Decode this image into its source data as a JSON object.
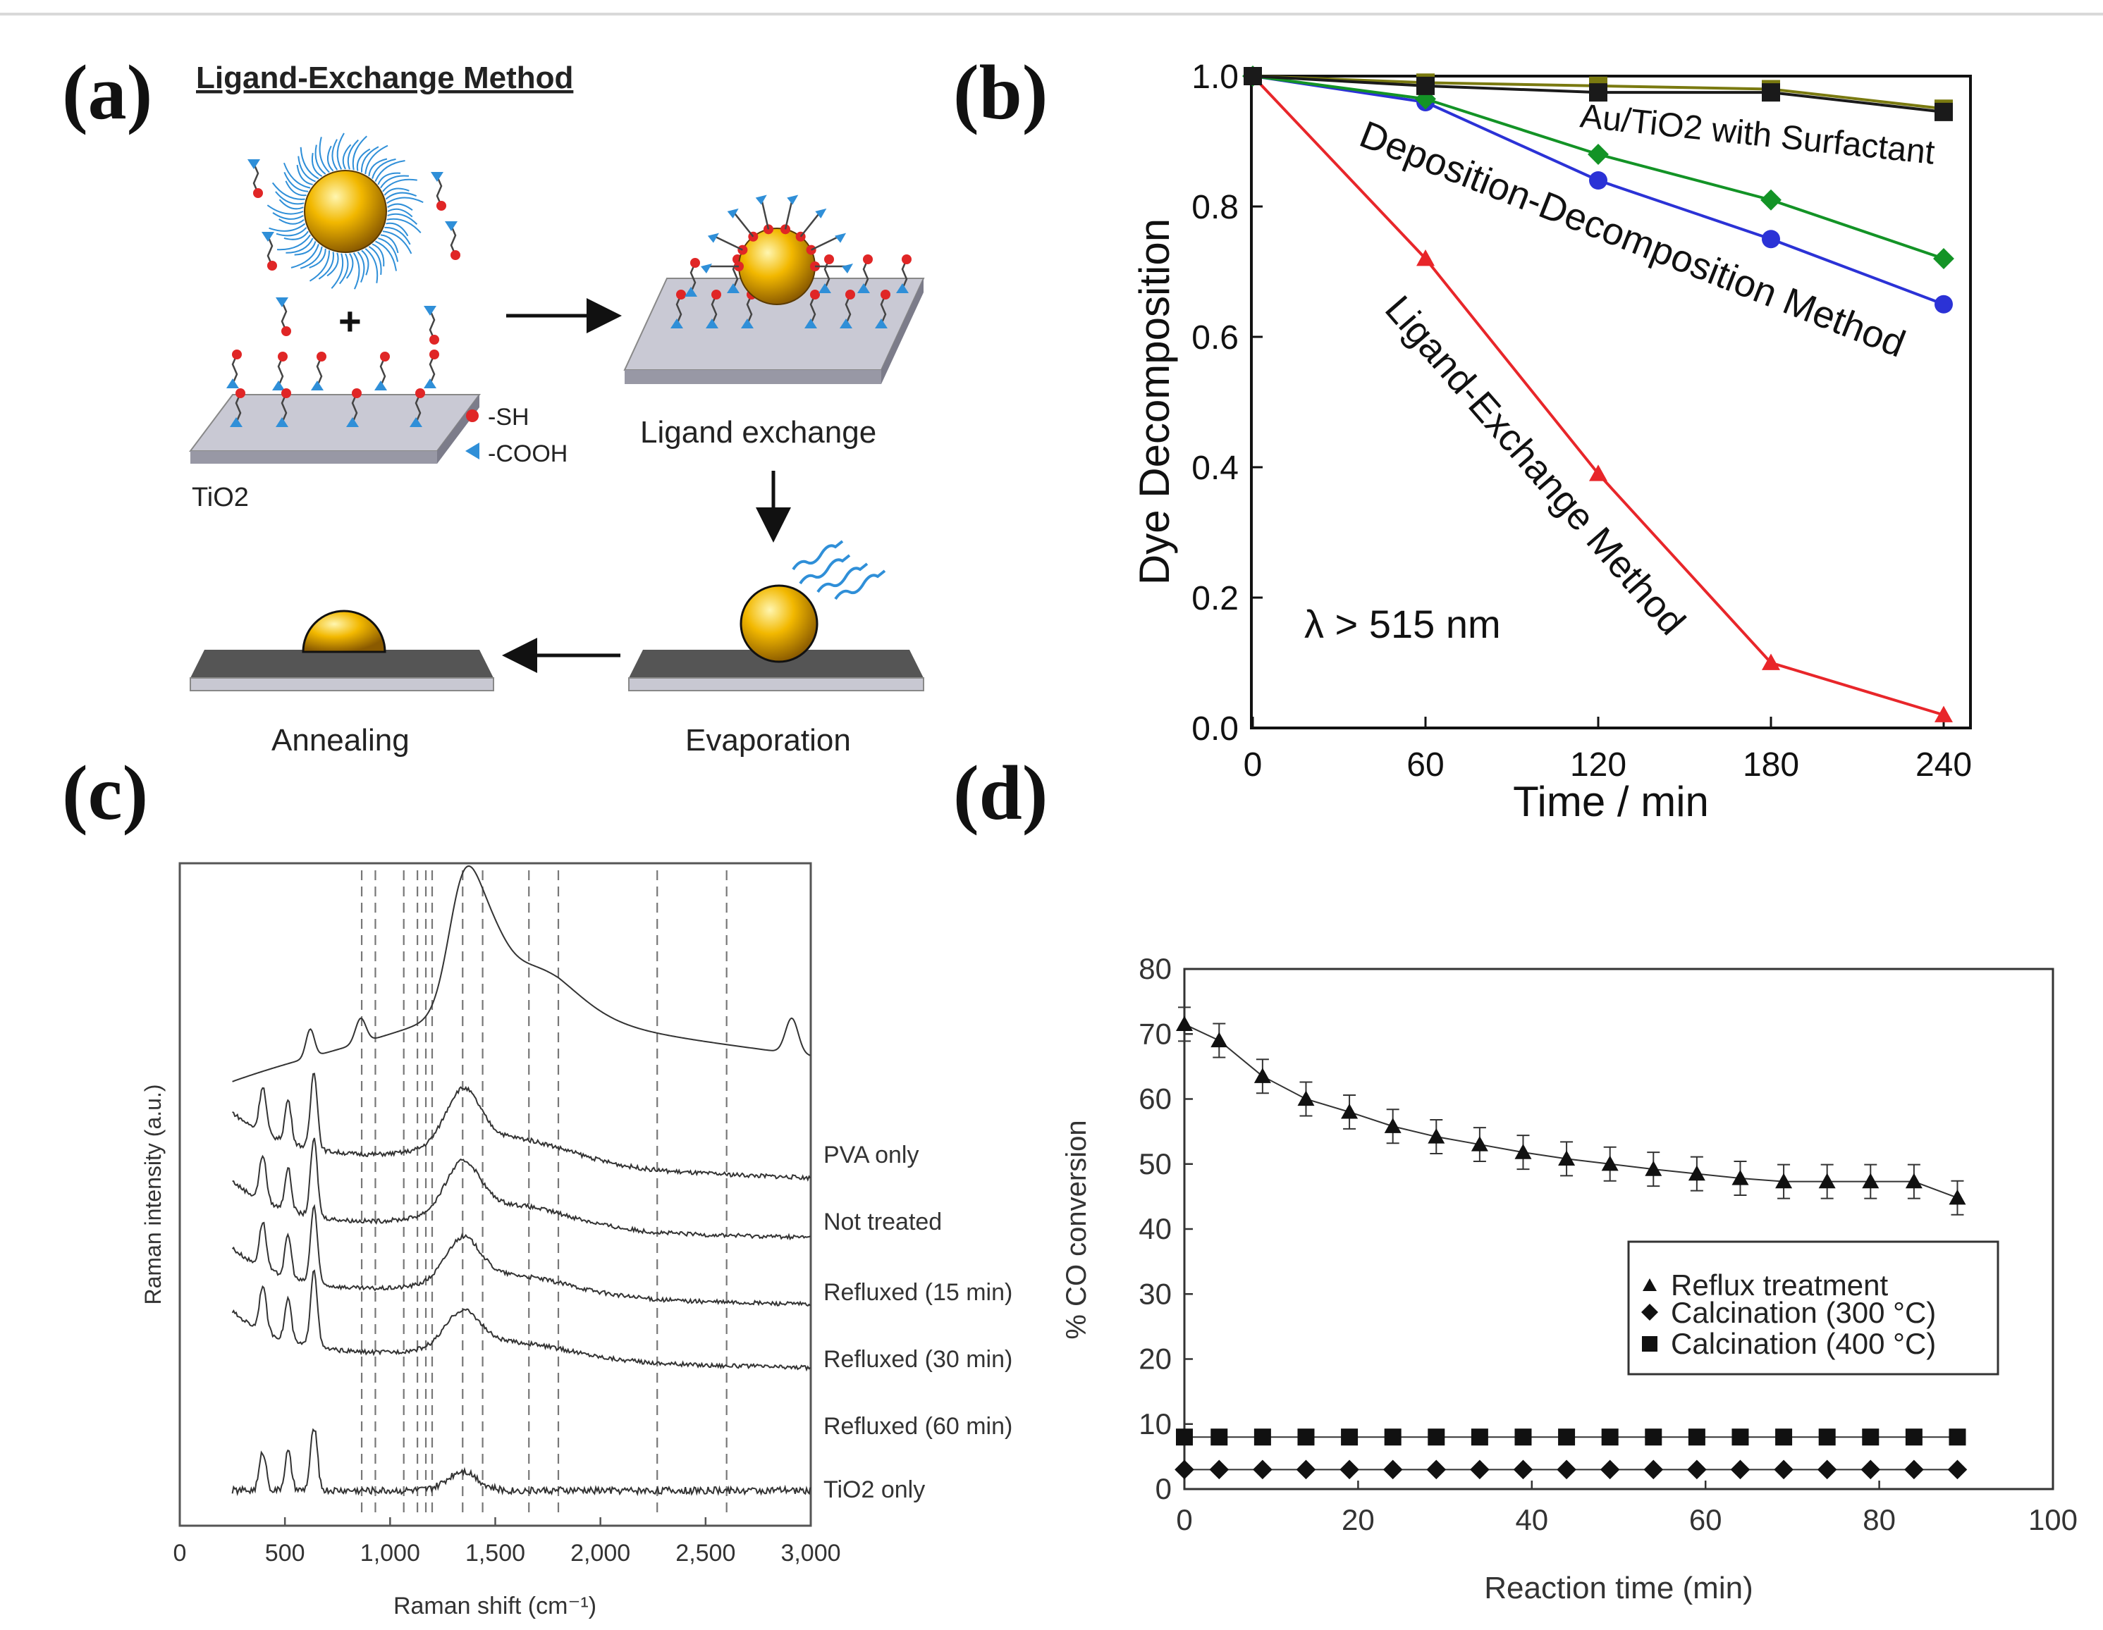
{
  "panel_labels": [
    "(a)",
    "(b)",
    "(c)",
    "(d)"
  ],
  "panel_a": {
    "title": "Ligand-Exchange Method",
    "legend_sh": "-SH",
    "legend_cooh": "-COOH",
    "substrate_label": "TiO2",
    "step_ligand_exchange": "Ligand exchange",
    "step_evaporation": "Evaporation",
    "step_annealing": "Annealing",
    "plus": "+"
  },
  "colors": {
    "red": "#e8262a",
    "blue": "#2b32d6",
    "green": "#139326",
    "olive": "#7a7a10",
    "black": "#1a1a1a",
    "gray_line": "#555555",
    "gold": "#f0b400",
    "ligand_blue": "#2f8fd8",
    "thiol_red": "#e02626",
    "substrate": "#c8c8d2"
  },
  "chart_data": [
    {
      "id": "b",
      "type": "line",
      "title": "",
      "xlabel": "Time / min",
      "ylabel": "Dye Decomposition",
      "xlim": [
        0,
        250
      ],
      "ylim": [
        0,
        1.0
      ],
      "xticks": [
        0,
        60,
        120,
        180,
        240
      ],
      "yticks": [
        0.0,
        0.2,
        0.4,
        0.6,
        0.8,
        1.0
      ],
      "xtick_labels": [
        "0",
        "60",
        "120",
        "180",
        "240"
      ],
      "ytick_labels": [
        "0.0",
        "0.2",
        "0.4",
        "0.6",
        "0.8",
        "1.0"
      ],
      "x": [
        0,
        60,
        120,
        180,
        240
      ],
      "series": [
        {
          "name": "Ligand-Exchange Method",
          "marker": "triangle",
          "color": "#e8262a",
          "values": [
            1.0,
            0.72,
            0.39,
            0.1,
            0.02
          ]
        },
        {
          "name": "Deposition-Decomposition Method (a)",
          "marker": "circle",
          "color": "#2b32d6",
          "values": [
            1.0,
            0.96,
            0.84,
            0.75,
            0.65
          ]
        },
        {
          "name": "Deposition-Decomposition Method (b)",
          "marker": "diamond",
          "color": "#139326",
          "values": [
            1.0,
            0.965,
            0.88,
            0.81,
            0.72
          ]
        },
        {
          "name": "Au/TiO2 with Surfactant (a)",
          "marker": "square",
          "color": "#7a7a10",
          "values": [
            1.0,
            0.99,
            0.985,
            0.98,
            0.95
          ]
        },
        {
          "name": "Au/TiO2 with Surfactant (b)",
          "marker": "square",
          "color": "#1a1a1a",
          "values": [
            1.0,
            0.985,
            0.975,
            0.975,
            0.945
          ]
        }
      ],
      "annotations": {
        "surfactant": "Au/TiO2 with Surfactant",
        "deposition": "Deposition-Decomposition Method",
        "ligand": "Ligand-Exchange Method",
        "wavelength": "λ > 515 nm"
      }
    },
    {
      "id": "c",
      "type": "line",
      "title": "",
      "xlabel": "Raman shift (cm⁻¹)",
      "ylabel": "Raman intensity (a.u.)",
      "xlim": [
        0,
        3000
      ],
      "xticks": [
        0,
        500,
        1000,
        1500,
        2000,
        2500,
        3000
      ],
      "xtick_labels": [
        "0",
        "500",
        "1,000",
        "1,500",
        "2,000",
        "2,500",
        "3,000"
      ],
      "reference_lines_cm": [
        865,
        930,
        1065,
        1130,
        1170,
        1200,
        1345,
        1440,
        1660,
        1800,
        2270,
        2600
      ],
      "series": [
        {
          "name": "PVA only",
          "offset": 5
        },
        {
          "name": "Not treated",
          "offset": 4
        },
        {
          "name": "Refluxed (15 min)",
          "offset": 3
        },
        {
          "name": "Refluxed (30 min)",
          "offset": 2
        },
        {
          "name": "Refluxed (60 min)",
          "offset": 1
        },
        {
          "name": "TiO2 only",
          "offset": 0
        }
      ],
      "series_labels": [
        "PVA only",
        "Not treated",
        "Refluxed (15 min)",
        "Refluxed (30 min)",
        "Refluxed (60 min)",
        "TiO2 only"
      ]
    },
    {
      "id": "d",
      "type": "line",
      "title": "",
      "xlabel": "Reaction time (min)",
      "ylabel": "% CO conversion",
      "xlim": [
        0,
        100
      ],
      "ylim": [
        0,
        80
      ],
      "xticks": [
        0,
        20,
        40,
        60,
        80,
        100
      ],
      "yticks": [
        0,
        10,
        20,
        30,
        40,
        50,
        60,
        70,
        80
      ],
      "xtick_labels": [
        "0",
        "20",
        "40",
        "60",
        "80",
        "100"
      ],
      "ytick_labels": [
        "0",
        "10",
        "20",
        "30",
        "40",
        "50",
        "60",
        "70",
        "80"
      ],
      "legend_position": "center-right",
      "series": [
        {
          "name": "Reflux treatment",
          "marker": "triangle",
          "x": [
            0,
            4,
            9,
            14,
            19,
            24,
            29,
            34,
            39,
            44,
            49,
            54,
            59,
            64,
            69,
            74,
            79,
            84,
            89
          ],
          "values": [
            71.5,
            69,
            63.5,
            60,
            58,
            55.8,
            54.2,
            53,
            51.8,
            50.8,
            50,
            49.2,
            48.5,
            47.8,
            47.3,
            47.3,
            47.3,
            47.3,
            44.8
          ]
        },
        {
          "name": "Calcination (300 °C)",
          "marker": "diamond",
          "x": [
            0,
            4,
            9,
            14,
            19,
            24,
            29,
            34,
            39,
            44,
            49,
            54,
            59,
            64,
            69,
            74,
            79,
            84,
            89
          ],
          "values": [
            3,
            3,
            3,
            3,
            3,
            3,
            3,
            3,
            3,
            3,
            3,
            3,
            3,
            3,
            3,
            3,
            3,
            3,
            3
          ]
        },
        {
          "name": "Calcination (400 °C)",
          "marker": "square",
          "x": [
            0,
            4,
            9,
            14,
            19,
            24,
            29,
            34,
            39,
            44,
            49,
            54,
            59,
            64,
            69,
            74,
            79,
            84,
            89
          ],
          "values": [
            8,
            8,
            8,
            8,
            8,
            8,
            8,
            8,
            8,
            8,
            8,
            8,
            8,
            8,
            8,
            8,
            8,
            8,
            8
          ]
        }
      ],
      "legend": [
        "Reflux treatment",
        "Calcination (300 °C)",
        "Calcination (400 °C)"
      ]
    }
  ]
}
